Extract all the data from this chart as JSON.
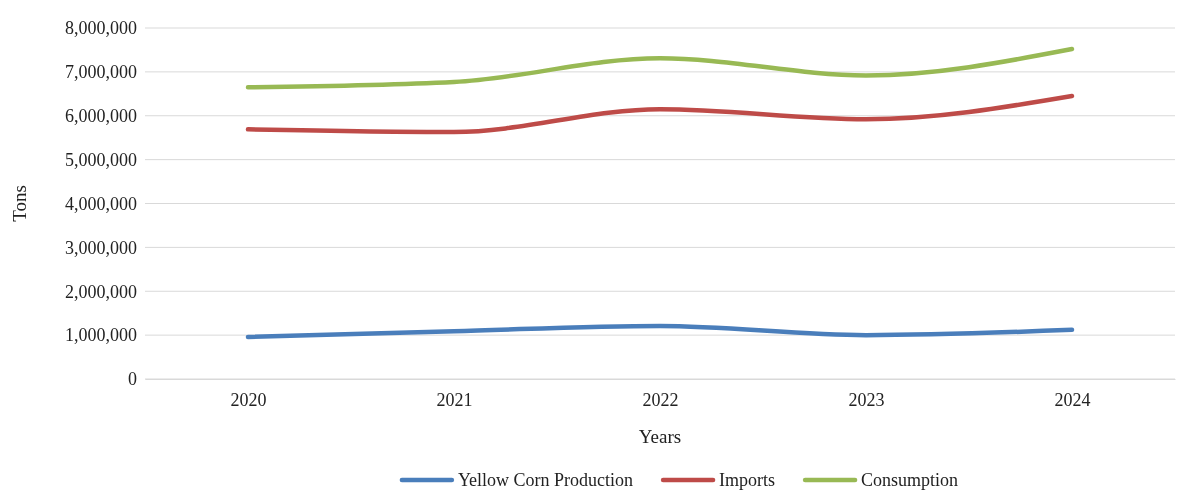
{
  "chart_data": {
    "type": "line",
    "xlabel": "Years",
    "ylabel": "Tons",
    "categories": [
      "2020",
      "2021",
      "2022",
      "2023",
      "2024"
    ],
    "series": [
      {
        "name": "Yellow Corn Production",
        "color": "#4a7ebb",
        "values": [
          960000,
          1090000,
          1210000,
          1000000,
          1120000
        ]
      },
      {
        "name": "Imports",
        "color": "#be4b48",
        "values": [
          5690000,
          5630000,
          6150000,
          5920000,
          6450000
        ]
      },
      {
        "name": "Consumption",
        "color": "#98b954",
        "values": [
          6650000,
          6770000,
          7310000,
          6920000,
          7520000
        ]
      }
    ],
    "ylim": [
      0,
      8000000
    ],
    "yticks": [
      {
        "value": 0,
        "label": "0"
      },
      {
        "value": 1000000,
        "label": "1,000,000"
      },
      {
        "value": 2000000,
        "label": "2,000,000"
      },
      {
        "value": 3000000,
        "label": "3,000,000"
      },
      {
        "value": 4000000,
        "label": "4,000,000"
      },
      {
        "value": 5000000,
        "label": "5,000,000"
      },
      {
        "value": 6000000,
        "label": "6,000,000"
      },
      {
        "value": 7000000,
        "label": "7,000,000"
      },
      {
        "value": 8000000,
        "label": "8,000,000"
      }
    ],
    "grid": "y",
    "legend": "bottom",
    "marker": "none",
    "line_style": "solid"
  }
}
